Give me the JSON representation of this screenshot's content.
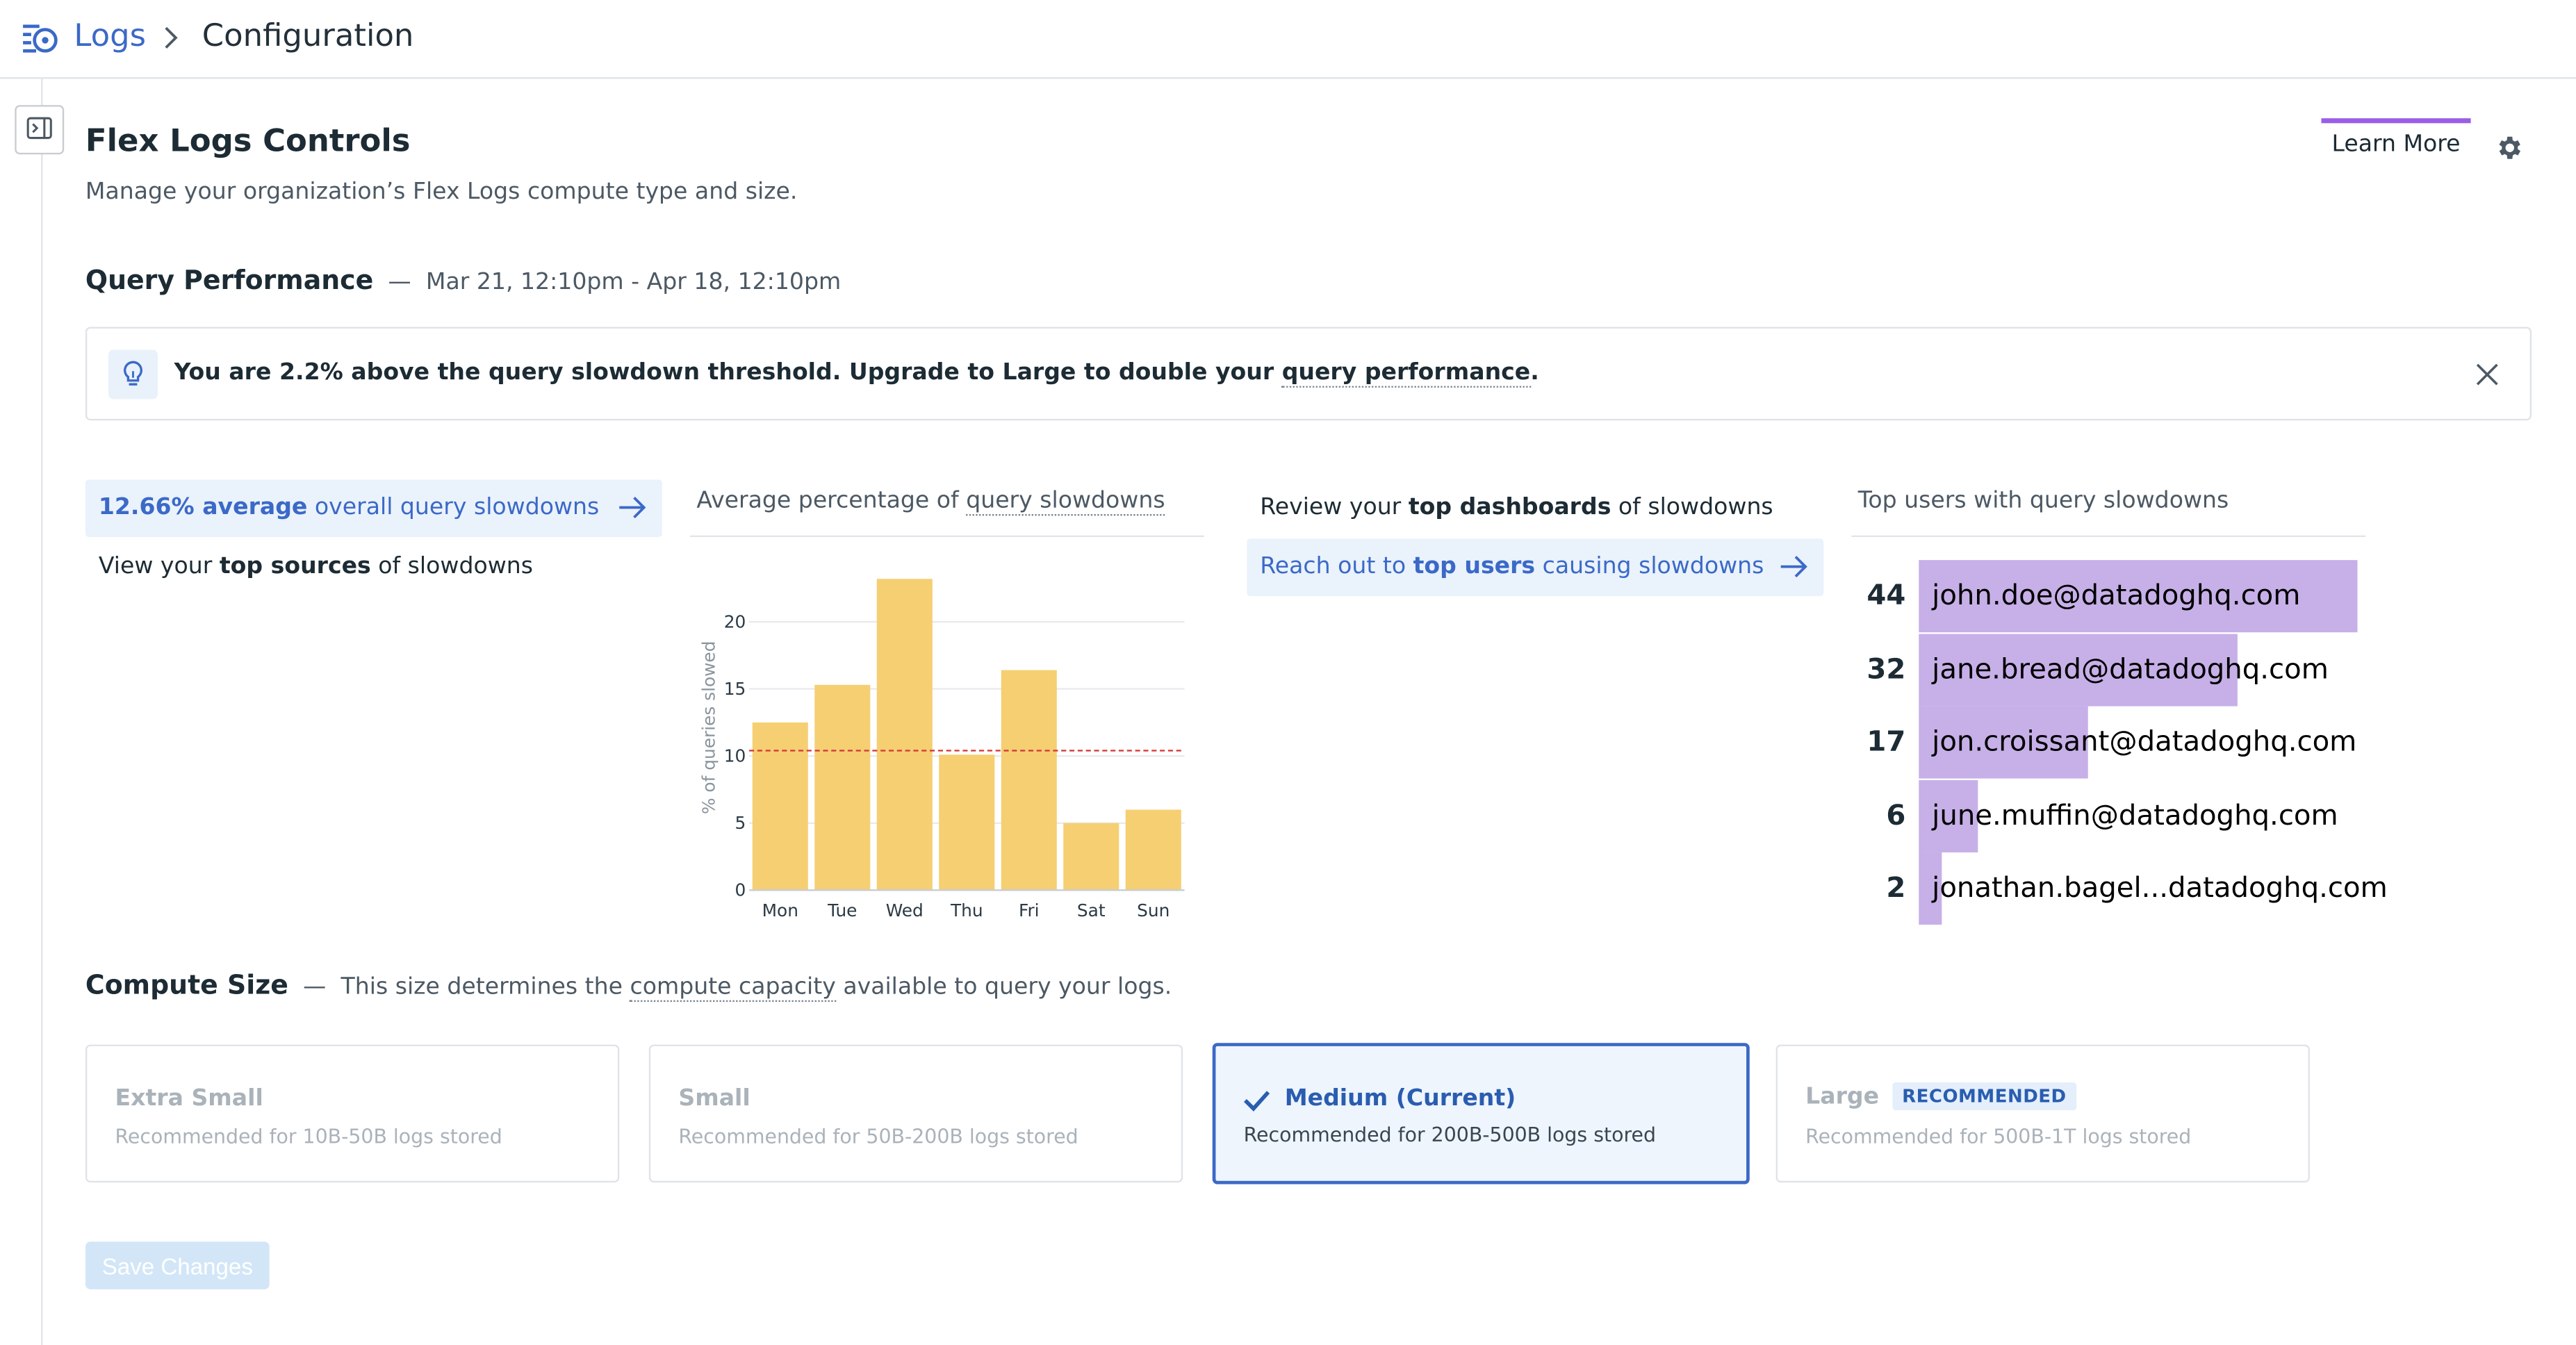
{
  "breadcrumb": {
    "root": "Logs",
    "current": "Configuration"
  },
  "header": {
    "title": "Flex Logs Controls",
    "subtitle": "Manage your organization’s Flex Logs compute type and size.",
    "learn_more": "Learn More",
    "accent_color": "#9b5de5"
  },
  "query_performance": {
    "title": "Query Performance",
    "dash": "—",
    "range": "Mar 21, 12:10pm - Apr 18, 12:10pm"
  },
  "callout": {
    "prefix": "You are 2.2% above the query slowdown threshold. Upgrade to Large to double your ",
    "link": "query performance",
    "suffix": "."
  },
  "summary": {
    "avg_value": "12.66% average",
    "avg_rest": "overall query slowdowns",
    "sources_pre": "View your",
    "sources_bold": "top sources",
    "sources_post": "of slowdowns"
  },
  "review": {
    "dash_pre": "Review your",
    "dash_bold": "top dashboards",
    "dash_post": "of slowdowns",
    "users_pre": "Reach out to",
    "users_bold": "top users",
    "users_post": "causing slowdowns"
  },
  "chart_header": {
    "prefix": "Average percentage of ",
    "link": "query slowdowns"
  },
  "chart_data": {
    "type": "bar",
    "categories": [
      "Mon",
      "Tue",
      "Wed",
      "Thu",
      "Fri",
      "Sat",
      "Sun"
    ],
    "values": [
      12.5,
      15.3,
      23.2,
      10.1,
      16.4,
      5.0,
      6.0
    ],
    "ylabel": "% of queries slowed",
    "ylim": [
      0,
      23.5
    ],
    "yticks": [
      0,
      5,
      10,
      15,
      20
    ],
    "threshold": 10.4,
    "bar_color": "#f5cf72",
    "threshold_color": "#d33a3a",
    "grid": true
  },
  "top_users": {
    "title": "Top users with query slowdowns",
    "bar_color": "#c7b0e8",
    "max": 44,
    "items": [
      {
        "count": "44",
        "value": 44,
        "email": "john.doe@datadoghq.com"
      },
      {
        "count": "32",
        "value": 32,
        "email": "jane.bread@datadoghq.com"
      },
      {
        "count": "17",
        "value": 17,
        "email": "jon.croissant@datadoghq.com"
      },
      {
        "count": "6",
        "value": 6,
        "email": "june.muffin@datadoghq.com"
      },
      {
        "count": "2",
        "value": 2,
        "email": "jonathan.bagel...datadoghq.com"
      }
    ]
  },
  "compute_size": {
    "title": "Compute Size",
    "dash": "—",
    "desc_pre": "This size determines the",
    "desc_link": "compute capacity",
    "desc_post": "available to query your logs.",
    "options": [
      {
        "label": "Extra Small",
        "sub": "Recommended for 10B-50B logs stored"
      },
      {
        "label": "Small",
        "sub": "Recommended for 50B-200B logs stored"
      },
      {
        "label": "Medium (Current)",
        "sub": "Recommended for 200B-500B logs stored"
      },
      {
        "label": "Large",
        "badge": "RECOMMENDED",
        "sub": "Recommended for 500B-1T logs stored"
      }
    ]
  },
  "save_button": "Save Changes"
}
